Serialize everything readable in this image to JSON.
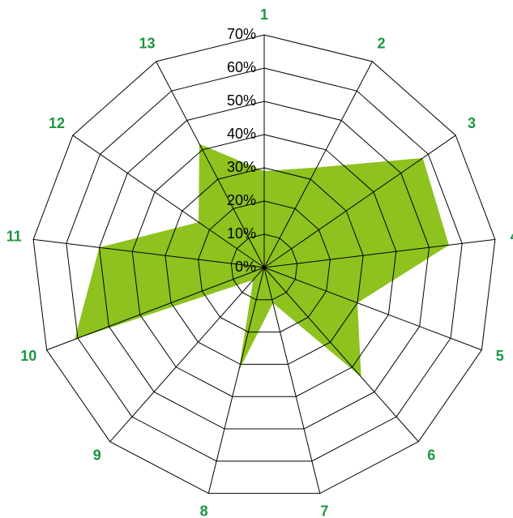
{
  "chart_data": {
    "type": "radar",
    "categories": [
      "1",
      "2",
      "3",
      "4",
      "5",
      "6",
      "7",
      "8",
      "9",
      "10",
      "11",
      "12",
      "13"
    ],
    "series": [
      {
        "color": "#8dc21f",
        "values": [
          29,
          34,
          58,
          56,
          30,
          44,
          11,
          32,
          5,
          61,
          50,
          24,
          42
        ]
      }
    ],
    "ylim": [
      0,
      70
    ],
    "yticks": [
      {
        "value": 0,
        "label": "0%"
      },
      {
        "value": 10,
        "label": "10%"
      },
      {
        "value": 20,
        "label": "20%"
      },
      {
        "value": 30,
        "label": "30%"
      },
      {
        "value": 40,
        "label": "40%"
      },
      {
        "value": 50,
        "label": "50%"
      },
      {
        "value": 60,
        "label": "60%"
      },
      {
        "value": 70,
        "label": "70%"
      }
    ],
    "grid": true
  }
}
